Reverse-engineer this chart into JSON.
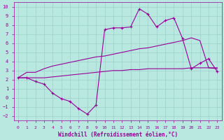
{
  "bg_color": "#b8e8e0",
  "line_color": "#990099",
  "grid_color": "#9ecfcc",
  "xlabel": "Windchill (Refroidissement éolien,°C)",
  "tick_color": "#990099",
  "xlim": [
    -0.5,
    23.5
  ],
  "ylim": [
    -2.5,
    10.5
  ],
  "xticks": [
    0,
    1,
    2,
    3,
    4,
    5,
    6,
    7,
    8,
    9,
    10,
    11,
    12,
    13,
    14,
    15,
    16,
    17,
    18,
    19,
    20,
    21,
    22,
    23
  ],
  "yticks": [
    -2,
    -1,
    0,
    1,
    2,
    3,
    4,
    5,
    6,
    7,
    8,
    9,
    10
  ],
  "line1_x": [
    0,
    1,
    2,
    3,
    4,
    5,
    6,
    7,
    8,
    9,
    10,
    11,
    12,
    13,
    14,
    15,
    16,
    17,
    18,
    19,
    20,
    21,
    22,
    23
  ],
  "line1_y": [
    2.2,
    2.8,
    2.8,
    3.2,
    3.5,
    3.7,
    3.9,
    4.1,
    4.3,
    4.5,
    4.6,
    4.8,
    5.0,
    5.2,
    5.4,
    5.5,
    5.7,
    5.9,
    6.1,
    6.3,
    6.6,
    6.3,
    3.3,
    3.2
  ],
  "line2_x": [
    0,
    1,
    2,
    3,
    4,
    5,
    6,
    7,
    8,
    9,
    10,
    11,
    12,
    13,
    14,
    15,
    16,
    17,
    18,
    19,
    20,
    21,
    22,
    23
  ],
  "line2_y": [
    2.2,
    2.2,
    2.2,
    2.2,
    2.3,
    2.4,
    2.5,
    2.6,
    2.7,
    2.8,
    2.9,
    3.0,
    3.0,
    3.1,
    3.1,
    3.2,
    3.2,
    3.2,
    3.2,
    3.2,
    3.3,
    3.3,
    3.3,
    3.3
  ],
  "line3_x": [
    0,
    1,
    2,
    3,
    4,
    5,
    6,
    7,
    8,
    9,
    10,
    11,
    12,
    13,
    14,
    15,
    16,
    17,
    18,
    19,
    20,
    21,
    22,
    23
  ],
  "line3_y": [
    2.2,
    2.2,
    1.8,
    1.5,
    0.5,
    -0.1,
    -0.4,
    -1.2,
    -1.8,
    -0.8,
    7.5,
    7.7,
    7.7,
    7.8,
    9.8,
    9.2,
    7.8,
    8.5,
    8.8,
    6.5,
    3.2,
    3.8,
    4.3,
    2.9
  ]
}
